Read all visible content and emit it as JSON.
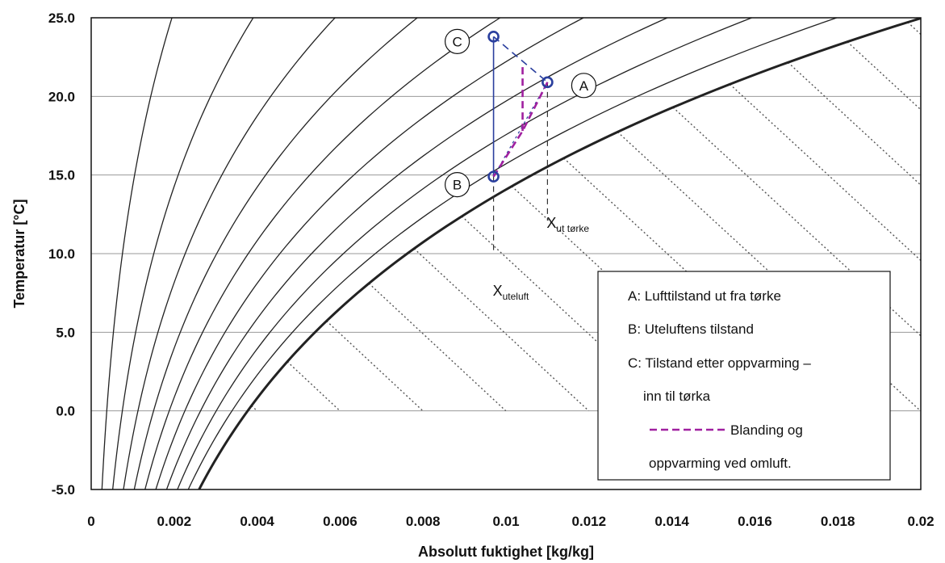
{
  "chart_data": {
    "type": "line",
    "title": "",
    "xlabel": "Absolutt fuktighet  [kg/kg]",
    "ylabel": "Temperatur  [°C]",
    "xlim": [
      0,
      0.02
    ],
    "ylim": [
      -5,
      25
    ],
    "x_ticks": [
      "0",
      "0.002",
      "0.004",
      "0.006",
      "0.008",
      "0.01",
      "0.012",
      "0.014",
      "0.016",
      "0.018",
      "0.02"
    ],
    "y_ticks": [
      "25.0",
      "20.0",
      "15.0",
      "10.0",
      "5.0",
      "0.0",
      "-5.0"
    ],
    "grid": "horizontal",
    "rh_curves": [
      0.1,
      0.2,
      0.3,
      0.4,
      0.5,
      0.6,
      0.7,
      0.8,
      0.9,
      1.0
    ],
    "enthalpy_lines_kj_per_kg": [
      5,
      10,
      15,
      20,
      25,
      30,
      35,
      40,
      45,
      50,
      55,
      60,
      65,
      70,
      75
    ],
    "points": [
      {
        "id": "A",
        "x": 0.011,
        "y": 20.9
      },
      {
        "id": "B",
        "x": 0.0097,
        "y": 14.9
      },
      {
        "id": "C",
        "x": 0.0097,
        "y": 23.8
      }
    ],
    "mixing_path": [
      {
        "x": 0.0097,
        "y": 14.9
      },
      {
        "x": 0.0104,
        "y": 17.8
      },
      {
        "x": 0.011,
        "y": 20.9
      }
    ],
    "mixing_spur": [
      {
        "x": 0.0104,
        "y": 17.8
      },
      {
        "x": 0.0104,
        "y": 22.1
      }
    ],
    "x_markers": [
      {
        "main": "X",
        "sub": "ut tørke",
        "x": 0.011
      },
      {
        "main": "X",
        "sub": "uteluft",
        "x": 0.0097
      }
    ],
    "legend": {
      "position": "bottom-right",
      "items": [
        "A: Lufttilstand ut fra tørke",
        "B: Uteluftens tilstand",
        "C: Tilstand etter oppvarming –",
        "inn til tørka",
        "Blanding og",
        "oppvarming ved omluft."
      ]
    },
    "colors": {
      "process": "#2a3f9e",
      "mixing": "#a020a0",
      "curves": "#222222",
      "grid": "#9a9a9a"
    }
  }
}
